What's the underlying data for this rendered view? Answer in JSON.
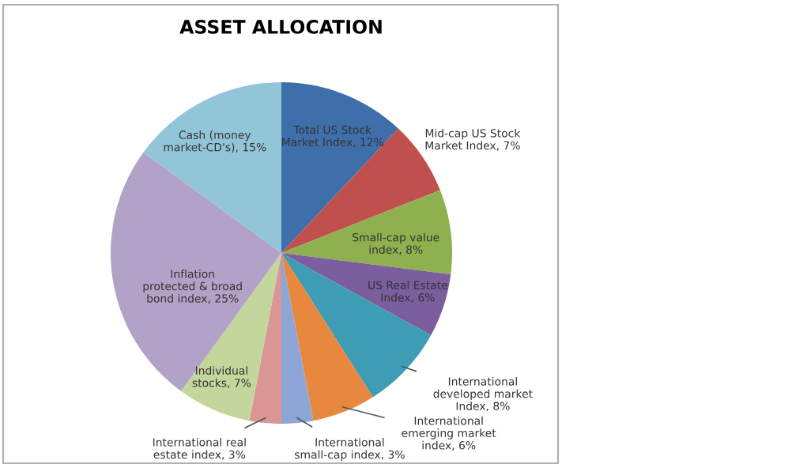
{
  "chart_data": {
    "type": "pie",
    "title": "ASSET ALLOCATION",
    "categories": [
      "Total US Stock Market Index",
      "Mid-cap US Stock Market Index",
      "Small-cap value index",
      "US Real Estate Index",
      "International developed market Index",
      "International emerging market index",
      "International small-cap index",
      "International real estate index",
      "Individual stocks",
      "Inflation protected & broad bond index",
      "Cash (money market-CD's)"
    ],
    "value_labels": [
      "12%",
      "7%",
      "8%",
      "6%",
      "8%",
      "6%",
      "3%",
      "3%",
      "7%",
      "25%",
      "15%"
    ],
    "values": [
      12,
      7,
      8,
      6,
      8,
      6,
      3,
      3,
      7,
      25,
      15
    ],
    "colors": [
      "#3f6faa",
      "#c0504d",
      "#8fb04e",
      "#7a5e9e",
      "#3e9cb4",
      "#e8873e",
      "#8ea6d6",
      "#d99694",
      "#c3d69b",
      "#b3a2c7",
      "#92c5d8"
    ],
    "legend": false
  }
}
